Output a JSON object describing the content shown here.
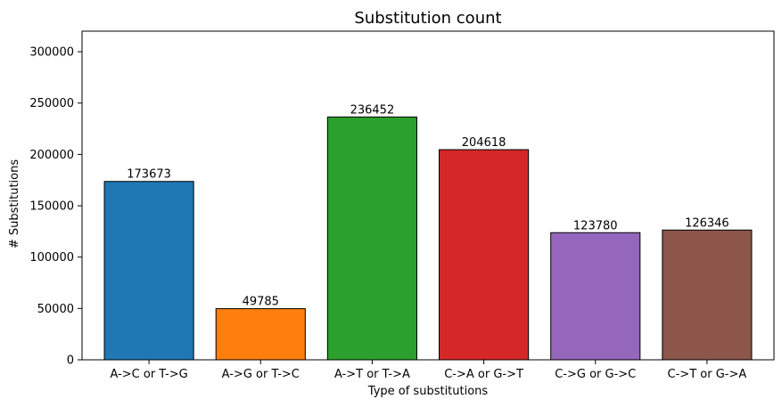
{
  "chart_data": {
    "type": "bar",
    "title": "Substitution count",
    "xlabel": "Type of substitutions",
    "ylabel": "# Substitutions",
    "categories": [
      "A->C or T->G",
      "A->G or T->C",
      "A->T or T->A",
      "C->A or G->T",
      "C->G or G->C",
      "C->T or G->A"
    ],
    "values": [
      173673,
      49785,
      236452,
      204618,
      123780,
      126346
    ],
    "data_labels": [
      "173673",
      "49785",
      "236452",
      "204618",
      "123780",
      "126346"
    ],
    "colors": [
      "#1f77b4",
      "#ff7f0e",
      "#2ca02c",
      "#d62728",
      "#9467bd",
      "#8c564b"
    ],
    "ylim": [
      0,
      320000
    ],
    "yticks": [
      0,
      50000,
      100000,
      150000,
      200000,
      250000,
      300000
    ],
    "ytick_labels": [
      "0",
      "50000",
      "100000",
      "150000",
      "200000",
      "250000",
      "300000"
    ],
    "grid": false,
    "legend": "none"
  }
}
